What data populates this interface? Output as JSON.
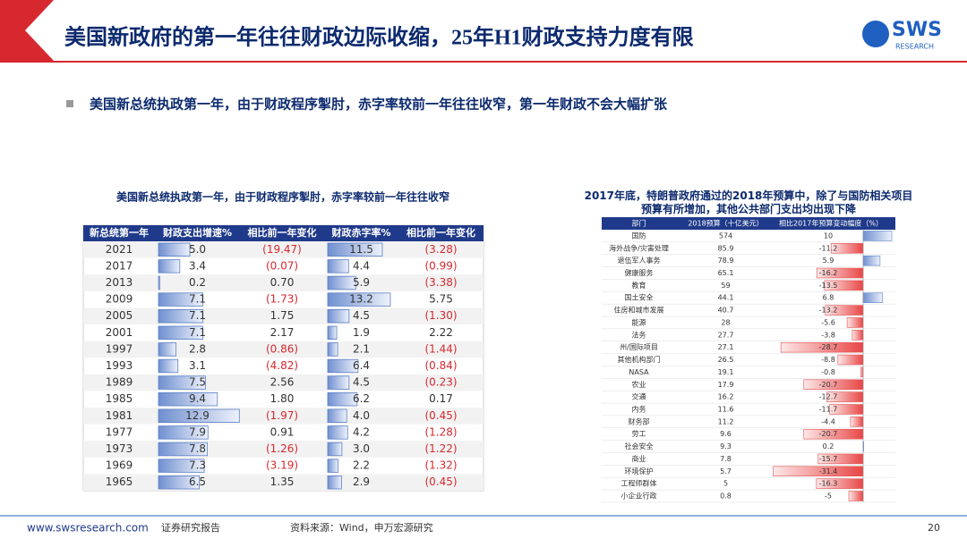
{
  "header": {
    "title": "美国新政府的第一年往往财政边际收缩，25年H1财政支持力度有限",
    "logo": "SWS",
    "logo_sub": "RESEARCH"
  },
  "bullet": "美国新总统执政第一年，由于财政程序掣肘，赤字率较前一年往往收窄，第一年财政不会大幅扩张",
  "left_table": {
    "title": "美国新总统执政第一年，由于财政程序掣肘，赤字率较前一年往往收窄",
    "columns": [
      "新总统第一年",
      "财政支出增速%",
      "相比前一年变化",
      "财政赤字率%",
      "相比前一年变化"
    ],
    "rows": [
      [
        "2021",
        "5.0",
        "(19.47)",
        "11.5",
        "(3.28)"
      ],
      [
        "2017",
        "3.4",
        "(0.07)",
        "4.4",
        "(0.99)"
      ],
      [
        "2013",
        "0.2",
        "0.70",
        "5.9",
        "(3.38)"
      ],
      [
        "2009",
        "7.1",
        "(1.73)",
        "13.2",
        "5.75"
      ],
      [
        "2005",
        "7.1",
        "1.75",
        "4.5",
        "(1.30)"
      ],
      [
        "2001",
        "7.1",
        "2.17",
        "1.9",
        "2.22"
      ],
      [
        "1997",
        "2.8",
        "(0.86)",
        "2.1",
        "(1.44)"
      ],
      [
        "1993",
        "3.1",
        "(4.82)",
        "6.4",
        "(0.84)"
      ],
      [
        "1989",
        "7.5",
        "2.56",
        "4.5",
        "(0.23)"
      ],
      [
        "1985",
        "9.4",
        "1.80",
        "6.2",
        "0.17"
      ],
      [
        "1981",
        "12.9",
        "(1.97)",
        "4.0",
        "(0.45)"
      ],
      [
        "1977",
        "7.9",
        "0.91",
        "4.2",
        "(1.28)"
      ],
      [
        "1973",
        "7.8",
        "(1.26)",
        "3.0",
        "(1.22)"
      ],
      [
        "1969",
        "7.3",
        "(3.19)",
        "2.2",
        "(1.32)"
      ],
      [
        "1965",
        "6.5",
        "1.35",
        "2.9",
        "(0.45)"
      ]
    ]
  },
  "right_table": {
    "title": "2017年底，特朗普政府通过的2018年预算中，除了与国防相关项目预算有所增加，其他公共部门支出均出现下降",
    "columns": [
      "部门",
      "2018预算（十亿美元）",
      "相比2017年预算变动幅度（%）"
    ],
    "rows": [
      [
        "国防",
        574,
        10
      ],
      [
        "海外战争/灾害处理",
        85.9,
        -11.2
      ],
      [
        "退伍军人事务",
        78.9,
        5.9
      ],
      [
        "健康服务",
        65.1,
        -16.2
      ],
      [
        "教育",
        59,
        -13.5
      ],
      [
        "国土安全",
        44.1,
        6.8
      ],
      [
        "住房和城市发展",
        40.7,
        -13.2
      ],
      [
        "能源",
        28,
        -5.6
      ],
      [
        "法务",
        27.7,
        -3.8
      ],
      [
        "州/国际项目",
        27.1,
        -28.7
      ],
      [
        "其他机构部门",
        26.5,
        -8.8
      ],
      [
        "NASA",
        19.1,
        -0.8
      ],
      [
        "农业",
        17.9,
        -20.7
      ],
      [
        "交通",
        16.2,
        -12.7
      ],
      [
        "内务",
        11.6,
        -11.7
      ],
      [
        "财务部",
        11.2,
        -4.4
      ],
      [
        "劳工",
        9.6,
        -20.7
      ],
      [
        "社会安全",
        9.3,
        0.2
      ],
      [
        "商业",
        7.8,
        -15.7
      ],
      [
        "环境保护",
        5.7,
        -31.4
      ],
      [
        "工程师群体",
        5,
        -16.3
      ],
      [
        "小企业行政",
        0.8,
        -5
      ]
    ]
  },
  "footer": {
    "website": "www.swsresearch.com",
    "label": "证券研究报告",
    "source": "资料来源：Wind，申万宏源研究",
    "page": 20
  }
}
